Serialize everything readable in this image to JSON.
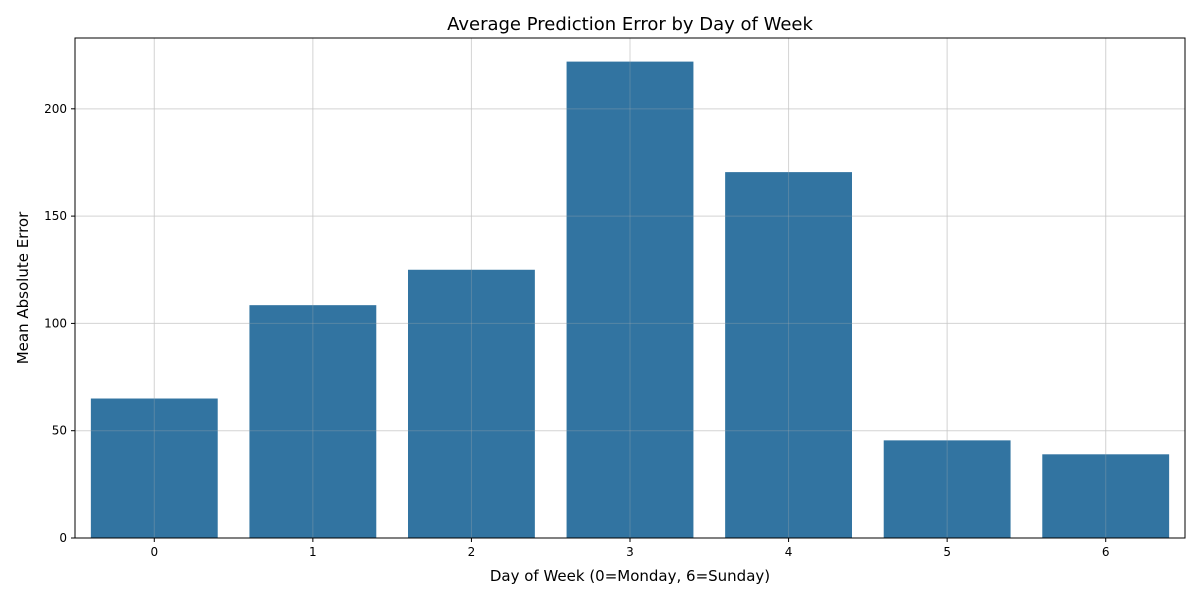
{
  "chart_data": {
    "type": "bar",
    "title": "Average Prediction Error by Day of Week",
    "xlabel": "Day of Week (0=Monday, 6=Sunday)",
    "ylabel": "Mean Absolute Error",
    "categories": [
      "0",
      "1",
      "2",
      "3",
      "4",
      "5",
      "6"
    ],
    "values": [
      65,
      108.5,
      125,
      222,
      170.5,
      45.5,
      39
    ],
    "ylim": [
      0,
      233
    ],
    "yticks": [
      0,
      50,
      100,
      150,
      200
    ],
    "grid": true,
    "bar_color": "#3274a1",
    "grid_color": "#e5e5e5"
  }
}
